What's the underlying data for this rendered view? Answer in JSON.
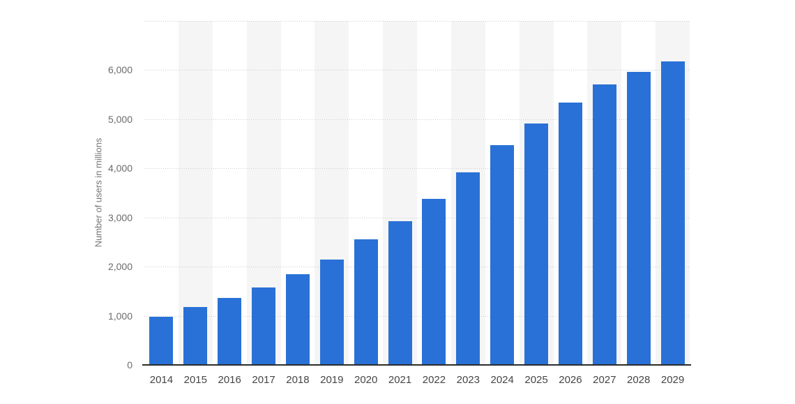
{
  "chart_data": {
    "type": "bar",
    "title": "",
    "xlabel": "",
    "ylabel": "Number of users in millions",
    "categories": [
      "2014",
      "2015",
      "2016",
      "2017",
      "2018",
      "2019",
      "2020",
      "2021",
      "2022",
      "2023",
      "2024",
      "2025",
      "2026",
      "2027",
      "2028",
      "2029"
    ],
    "values": [
      980,
      1180,
      1370,
      1580,
      1840,
      2150,
      2560,
      2930,
      3380,
      3920,
      4470,
      4910,
      5340,
      5710,
      5970,
      6170
    ],
    "ylim": [
      0,
      7000
    ],
    "ytick_interval": 1000,
    "ytick_labels": [
      "0",
      "1,000",
      "2,000",
      "3,000",
      "4,000",
      "5,000",
      "6,000"
    ],
    "grid": "horizontal-dotted",
    "legend_position": "none",
    "bar_color": "#2971d6",
    "band_color": "#f5f5f5",
    "gridline_color": "#cccccc",
    "axis_line_color": "#2b2b2b",
    "y_tick_color": "#6b6b6b",
    "x_tick_color": "#454545",
    "background_color": "#ffffff"
  }
}
